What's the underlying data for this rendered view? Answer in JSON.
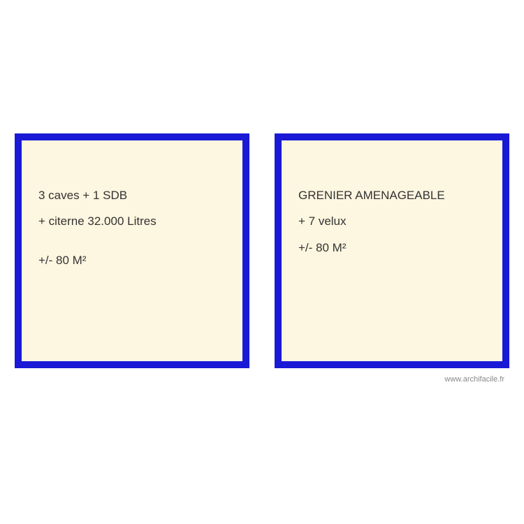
{
  "layout": {
    "background_color": "#ffffff",
    "box_fill_color": "#fdf6e0",
    "box_border_color": "#1919d6",
    "box_border_width": 10,
    "text_color": "#333333",
    "font_size": 17
  },
  "left_box": {
    "line1": "3 caves + 1 SDB",
    "line2": "+ citerne 32.000 Litres",
    "line3": "+/- 80 M²"
  },
  "right_box": {
    "line1": "GRENIER AMENAGEABLE",
    "line2": "+ 7 velux",
    "line3": "+/- 80 M²"
  },
  "footer": {
    "text": "www.archifacile.fr"
  }
}
